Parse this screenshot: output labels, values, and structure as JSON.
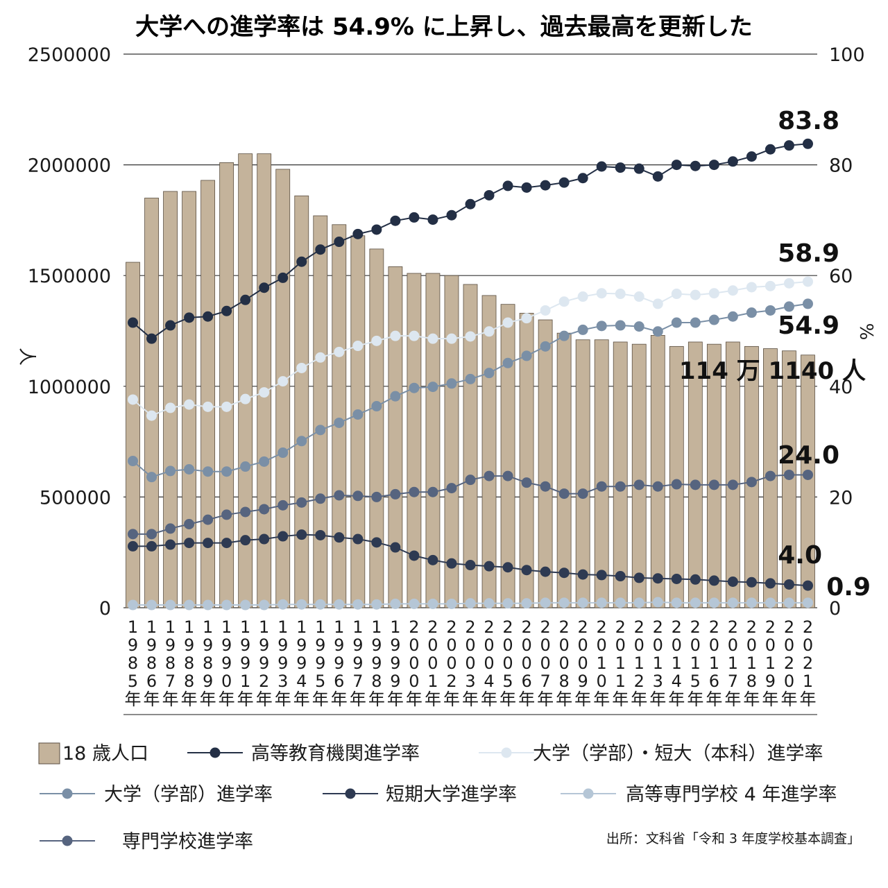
{
  "chart_data": {
    "type": "bar+line",
    "title": "大学への進学率は 54.9% に上昇し、過去最高を更新した",
    "x": [
      "1985",
      "1986",
      "1987",
      "1988",
      "1989",
      "1990",
      "1991",
      "1992",
      "1993",
      "1994",
      "1995",
      "1996",
      "1997",
      "1998",
      "1999",
      "2000",
      "2001",
      "2002",
      "2003",
      "2004",
      "2005",
      "2006",
      "2007",
      "2008",
      "2009",
      "2010",
      "2011",
      "2012",
      "2013",
      "2014",
      "2015",
      "2016",
      "2017",
      "2018",
      "2019",
      "2020",
      "2021"
    ],
    "x_suffix": "年",
    "y_left": {
      "label": "人",
      "ylim": [
        0,
        2500000
      ],
      "ticks": [
        "0",
        "500000",
        "1000000",
        "1500000",
        "2000000",
        "2500000"
      ]
    },
    "y_right": {
      "label": "%",
      "ylim": [
        0,
        100
      ],
      "ticks": [
        "0",
        "20",
        "40",
        "60",
        "80",
        "100"
      ]
    },
    "grid": true,
    "bars": {
      "name": "18 歳人口",
      "color": "#c4b39b",
      "values": [
        1560000,
        1850000,
        1880000,
        1880000,
        1930000,
        2010000,
        2050000,
        2050000,
        1980000,
        1860000,
        1770000,
        1730000,
        1680000,
        1620000,
        1540000,
        1510000,
        1510000,
        1500000,
        1460000,
        1410000,
        1370000,
        1330000,
        1300000,
        1240000,
        1210000,
        1210000,
        1200000,
        1190000,
        1230000,
        1180000,
        1200000,
        1190000,
        1200000,
        1180000,
        1170000,
        1160000,
        1141140
      ]
    },
    "series": [
      {
        "name": "高等教育機関進学率",
        "color": "#232f45",
        "values": [
          51.5,
          48.6,
          51.0,
          52.4,
          52.6,
          53.6,
          55.6,
          57.8,
          59.6,
          62.5,
          64.7,
          66.1,
          67.5,
          68.3,
          69.9,
          70.5,
          70.1,
          70.9,
          72.9,
          74.5,
          76.2,
          75.9,
          76.3,
          76.8,
          77.6,
          79.7,
          79.5,
          79.3,
          77.9,
          80.0,
          79.8,
          80.0,
          80.6,
          81.5,
          82.8,
          83.5,
          83.8
        ]
      },
      {
        "name": "大学（学部）・短大（本科）進学率",
        "color": "#dde7f0",
        "values": [
          37.6,
          34.7,
          36.1,
          36.7,
          36.3,
          36.3,
          37.7,
          38.9,
          40.9,
          43.3,
          45.2,
          46.2,
          47.3,
          48.2,
          49.1,
          49.1,
          48.6,
          48.6,
          49.0,
          49.9,
          51.5,
          52.3,
          53.7,
          55.3,
          56.2,
          56.8,
          56.7,
          56.2,
          54.9,
          56.7,
          56.5,
          56.8,
          57.3,
          57.9,
          58.1,
          58.6,
          58.9
        ]
      },
      {
        "name": "大学（学部）進学率",
        "color": "#7a8fa6",
        "values": [
          26.5,
          23.6,
          24.7,
          25.0,
          24.6,
          24.6,
          25.5,
          26.4,
          28.0,
          30.1,
          32.1,
          33.4,
          34.9,
          36.4,
          38.2,
          39.7,
          39.9,
          40.5,
          41.3,
          42.4,
          44.2,
          45.5,
          47.2,
          49.1,
          50.2,
          50.9,
          51.0,
          50.8,
          49.9,
          51.5,
          51.5,
          52.0,
          52.6,
          53.3,
          53.7,
          54.4,
          54.9
        ]
      },
      {
        "name": "専門学校進学率",
        "color": "#56647f",
        "values": [
          13.3,
          13.3,
          14.3,
          15.1,
          15.9,
          16.8,
          17.3,
          17.8,
          18.5,
          19.0,
          19.7,
          20.3,
          20.2,
          20.0,
          20.5,
          20.9,
          20.9,
          21.6,
          23.1,
          23.8,
          23.8,
          22.6,
          21.9,
          20.6,
          20.6,
          21.9,
          21.9,
          22.2,
          21.9,
          22.3,
          22.2,
          22.2,
          22.2,
          22.7,
          23.8,
          24.0,
          24.0
        ]
      },
      {
        "name": "短期大学進学率",
        "color": "#2e3a52",
        "values": [
          11.1,
          11.1,
          11.4,
          11.7,
          11.7,
          11.7,
          12.2,
          12.4,
          12.9,
          13.2,
          13.1,
          12.7,
          12.4,
          11.8,
          10.9,
          9.4,
          8.6,
          8.0,
          7.7,
          7.5,
          7.3,
          6.8,
          6.5,
          6.3,
          6.0,
          5.9,
          5.7,
          5.4,
          5.3,
          5.2,
          5.1,
          4.9,
          4.7,
          4.6,
          4.4,
          4.2,
          4.0
        ]
      },
      {
        "name": "高等専門学校４年進学率",
        "color": "#b5c6d6",
        "values": [
          0.5,
          0.5,
          0.5,
          0.5,
          0.5,
          0.5,
          0.5,
          0.5,
          0.6,
          0.6,
          0.6,
          0.6,
          0.6,
          0.6,
          0.7,
          0.7,
          0.7,
          0.7,
          0.8,
          0.8,
          0.8,
          0.8,
          0.9,
          0.9,
          0.9,
          0.9,
          0.9,
          0.9,
          1.0,
          0.9,
          0.9,
          0.9,
          0.9,
          0.9,
          0.9,
          0.9,
          0.9
        ]
      }
    ],
    "annotations": [
      {
        "text": "83.8",
        "series": 0
      },
      {
        "text": "58.9",
        "series": 1
      },
      {
        "text": "54.9",
        "series": 2
      },
      {
        "text": "24.0",
        "series": 3
      },
      {
        "text": "4.0",
        "series": 4
      },
      {
        "text": "0.9",
        "series": 5
      },
      {
        "text": "114 万 1140 人",
        "series": "bars"
      }
    ],
    "legend": {
      "placement": "bottom",
      "items": [
        "18 歳人口",
        "高等教育機関進学率",
        "大学（学部）・短大（本科）進学率",
        "大学（学部）進学率",
        "短期大学進学率",
        "高等専門学校 4 年進学率",
        "専門学校進学率"
      ]
    },
    "source": "出所：文科省「令和 3 年度学校基本調査」"
  }
}
